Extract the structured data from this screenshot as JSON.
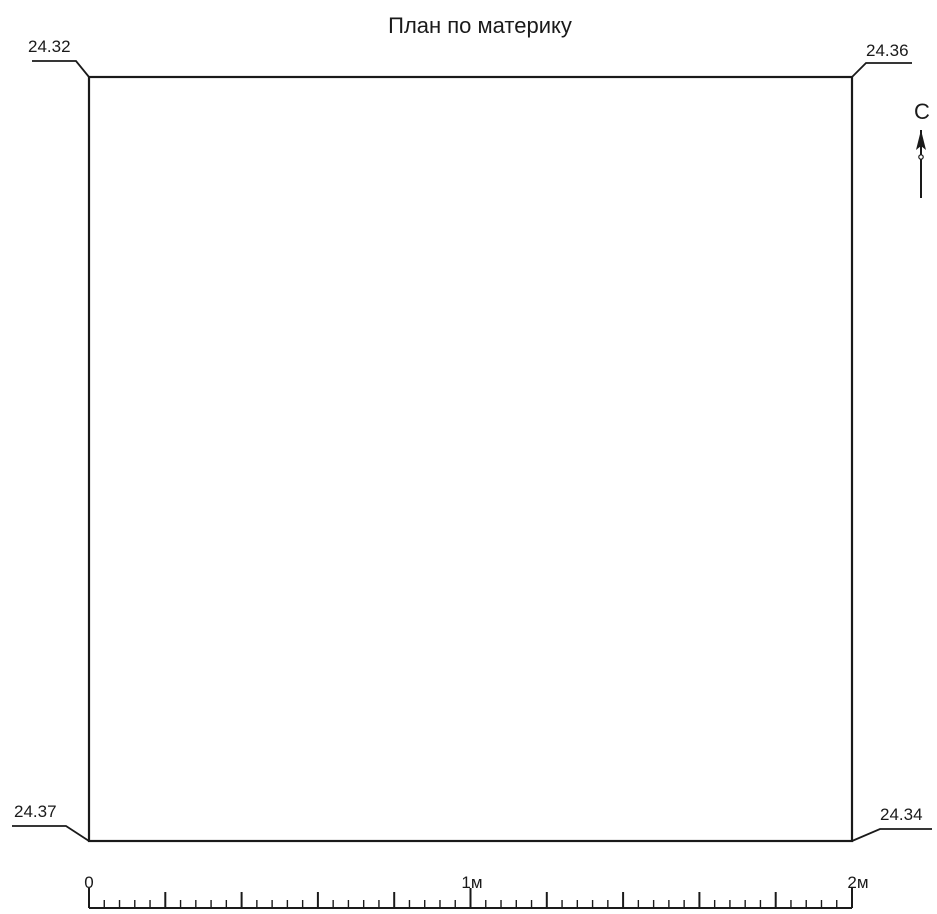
{
  "title": "План по материку",
  "north_label": "С",
  "elevations": {
    "top_left": "24.32",
    "top_right": "24.36",
    "bottom_left": "24.37",
    "bottom_right": "24.34"
  },
  "scale": {
    "labels": [
      "0",
      "1м",
      "2м"
    ],
    "major_divisions": 10,
    "minor_per_major": 5
  }
}
